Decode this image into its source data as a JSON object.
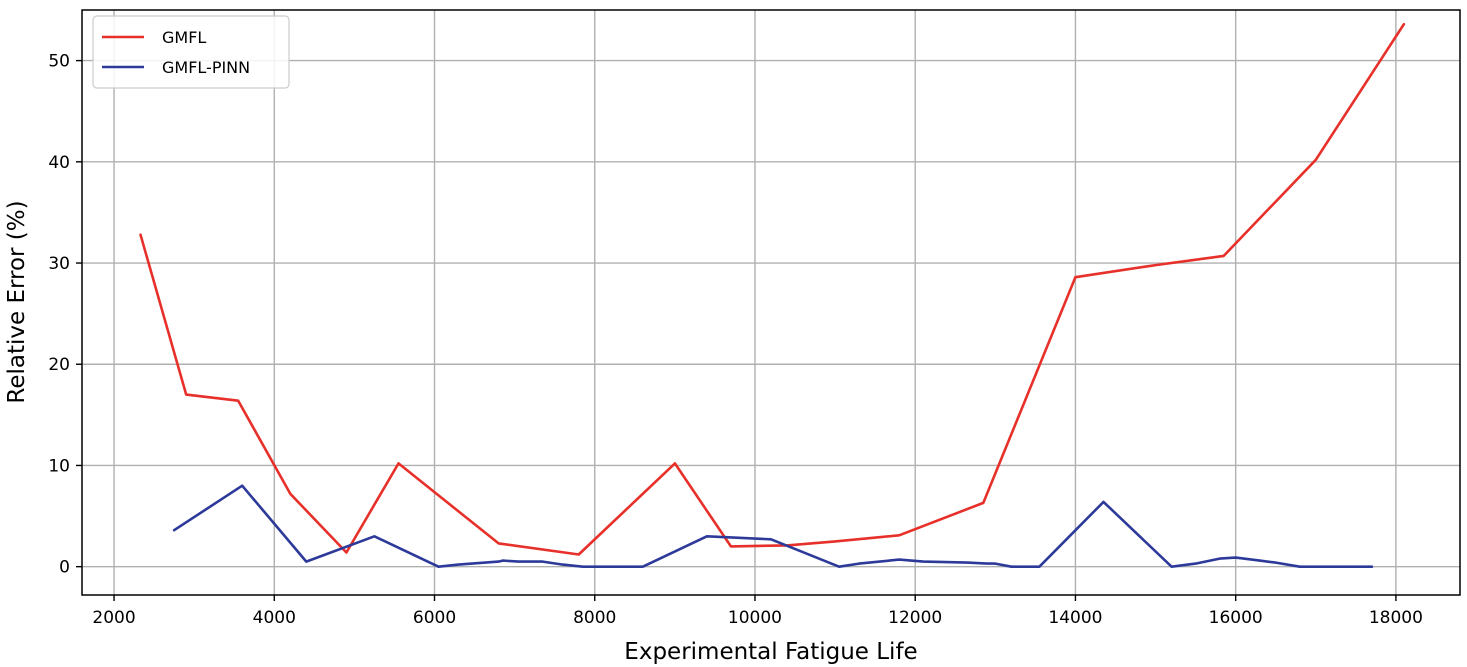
{
  "chart_data": {
    "type": "line",
    "title": "",
    "xlabel": "Experimental Fatigue Life",
    "ylabel": "Relative Error (%)",
    "xlim": [
      1600,
      18800
    ],
    "ylim": [
      -2.8,
      55
    ],
    "xticks": [
      2000,
      4000,
      6000,
      8000,
      10000,
      12000,
      14000,
      16000,
      18000
    ],
    "yticks": [
      0,
      10,
      20,
      30,
      40,
      50
    ],
    "grid": true,
    "legend_position": "top-left",
    "series": [
      {
        "name": "GMFL",
        "color": "#e8302a",
        "x": [
          2330,
          2900,
          3550,
          4200,
          4900,
          5550,
          6800,
          7800,
          9000,
          9700,
          10400,
          11000,
          11800,
          12850,
          14000,
          15000,
          15850,
          17000,
          18100
        ],
        "y": [
          32.8,
          17.0,
          16.4,
          7.2,
          1.4,
          10.2,
          2.3,
          1.2,
          10.2,
          2.0,
          2.1,
          2.5,
          3.1,
          6.3,
          28.6,
          29.8,
          30.7,
          40.2,
          53.6
        ]
      },
      {
        "name": "GMFL-PINN",
        "color": "#2d3a9a",
        "x": [
          2750,
          3600,
          4400,
          5250,
          6050,
          6300,
          6800,
          6850,
          7050,
          7350,
          7600,
          7850,
          8600,
          9400,
          10200,
          11050,
          11300,
          11800,
          12100,
          12650,
          12900,
          13000,
          13200,
          13550,
          14350,
          15200,
          15500,
          15800,
          16000,
          16300,
          16500,
          16800,
          17100,
          17700
        ],
        "y": [
          3.6,
          8.0,
          0.5,
          3.0,
          0.0,
          0.2,
          0.5,
          0.6,
          0.5,
          0.5,
          0.2,
          0.0,
          0.0,
          3.0,
          2.7,
          0.0,
          0.3,
          0.7,
          0.5,
          0.4,
          0.3,
          0.3,
          0.0,
          0.0,
          6.4,
          0.0,
          0.3,
          0.8,
          0.9,
          0.6,
          0.4,
          0.0,
          0.0,
          0.0
        ]
      }
    ]
  }
}
